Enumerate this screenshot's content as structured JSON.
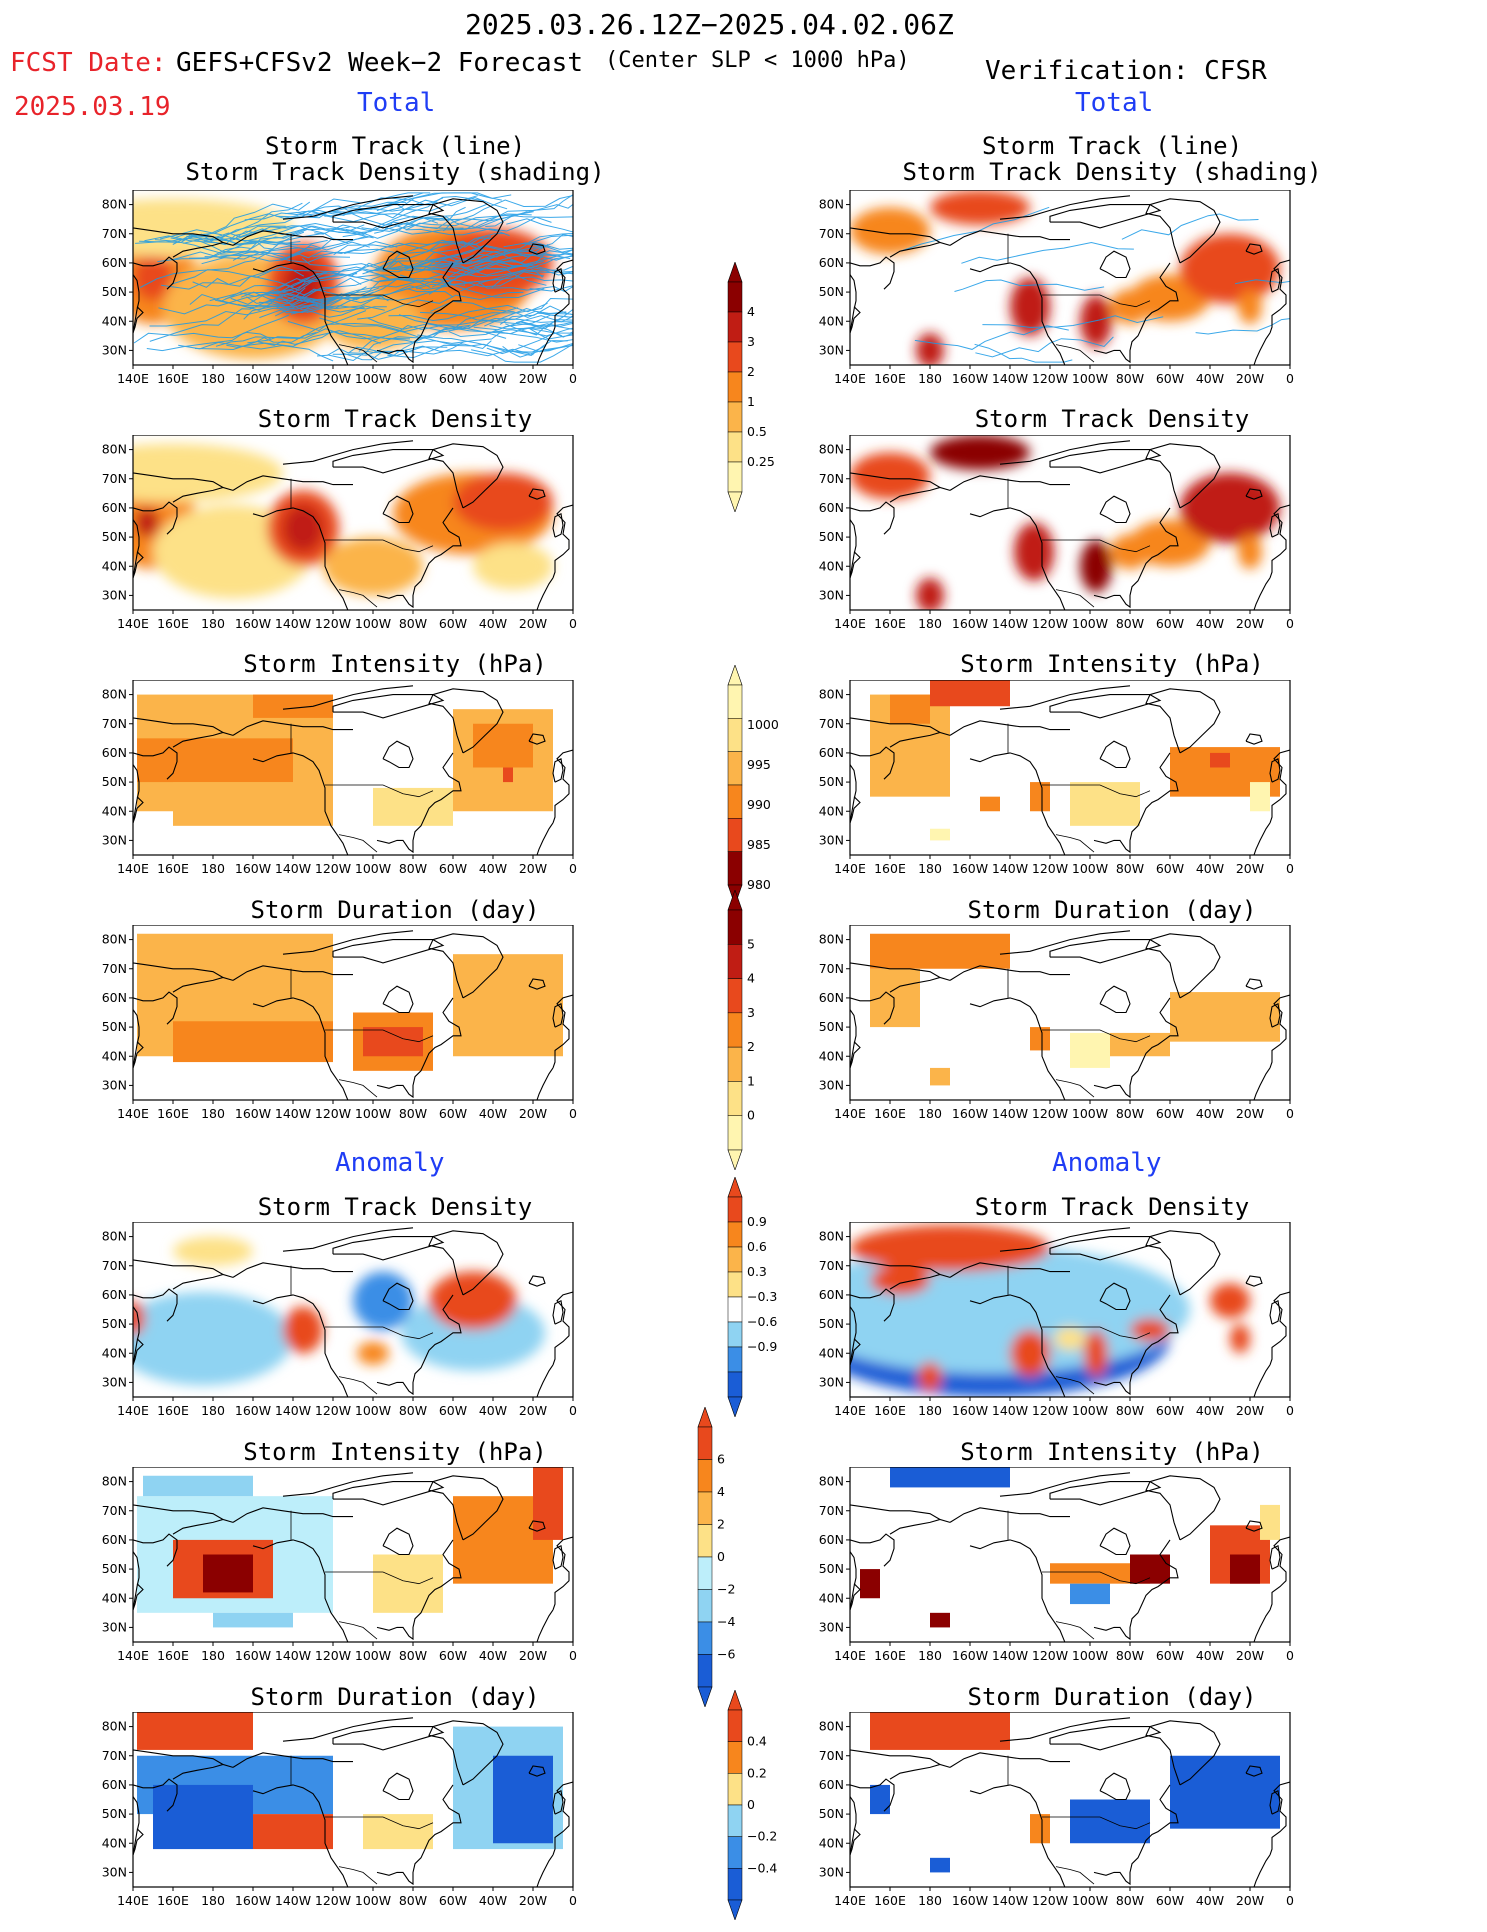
{
  "header": {
    "date_range": "2025.03.26.12Z−2025.04.02.06Z",
    "fcst_label": "FCST Date:",
    "fcst_date": "2025.03.19",
    "forecast_title": "GEFS+CFSv2 Week−2 Forecast",
    "condition": "(Center SLP < 1000 hPa)",
    "verification": "Verification: CFSR"
  },
  "sections": {
    "total": "Total",
    "anomaly": "Anomaly"
  },
  "panel_titles": {
    "track_line": "Storm Track (line)",
    "track_density_shading": "Storm Track Density (shading)",
    "track_density": "Storm Track Density",
    "intensity": "Storm Intensity (hPa)",
    "duration": "Storm Duration (day)"
  },
  "axes": {
    "lon_labels": [
      "140E",
      "160E",
      "180",
      "160W",
      "140W",
      "120W",
      "100W",
      "80W",
      "60W",
      "40W",
      "20W",
      "0"
    ],
    "lat_labels": [
      "80N",
      "70N",
      "60N",
      "50N",
      "40N",
      "30N"
    ]
  },
  "colorbars": {
    "total_density": [
      "4",
      "3",
      "2",
      "1",
      "0.5",
      "0.25"
    ],
    "total_intensity": [
      "1000",
      "995",
      "990",
      "985",
      "980"
    ],
    "total_duration": [
      "5",
      "4",
      "3",
      "2",
      "1",
      "0"
    ],
    "anom_density": [
      "0.9",
      "0.6",
      "0.3",
      "−0.3",
      "−0.6",
      "−0.9"
    ],
    "anom_intensity": [
      "6",
      "4",
      "2",
      "0",
      "−2",
      "−4",
      "−6"
    ],
    "anom_duration": [
      "0.4",
      "0.2",
      "0",
      "−0.2",
      "−0.4"
    ]
  },
  "colors": {
    "density": [
      "#fff5b0",
      "#fde187",
      "#fbb44a",
      "#f7861d",
      "#e8491d",
      "#c01d14",
      "#8b0000"
    ],
    "intensity": [
      "#fff5b0",
      "#fde187",
      "#fbb44a",
      "#f7861d",
      "#e8491d",
      "#8b0000"
    ],
    "anomaly": [
      "#1a5dd6",
      "#3b8ee6",
      "#8fd3f2",
      "#bdeefa",
      "#ffffff",
      "#fde187",
      "#fbb44a",
      "#f7861d",
      "#e8491d",
      "#8b0000"
    ],
    "track_line": "#1a9ae6"
  }
}
